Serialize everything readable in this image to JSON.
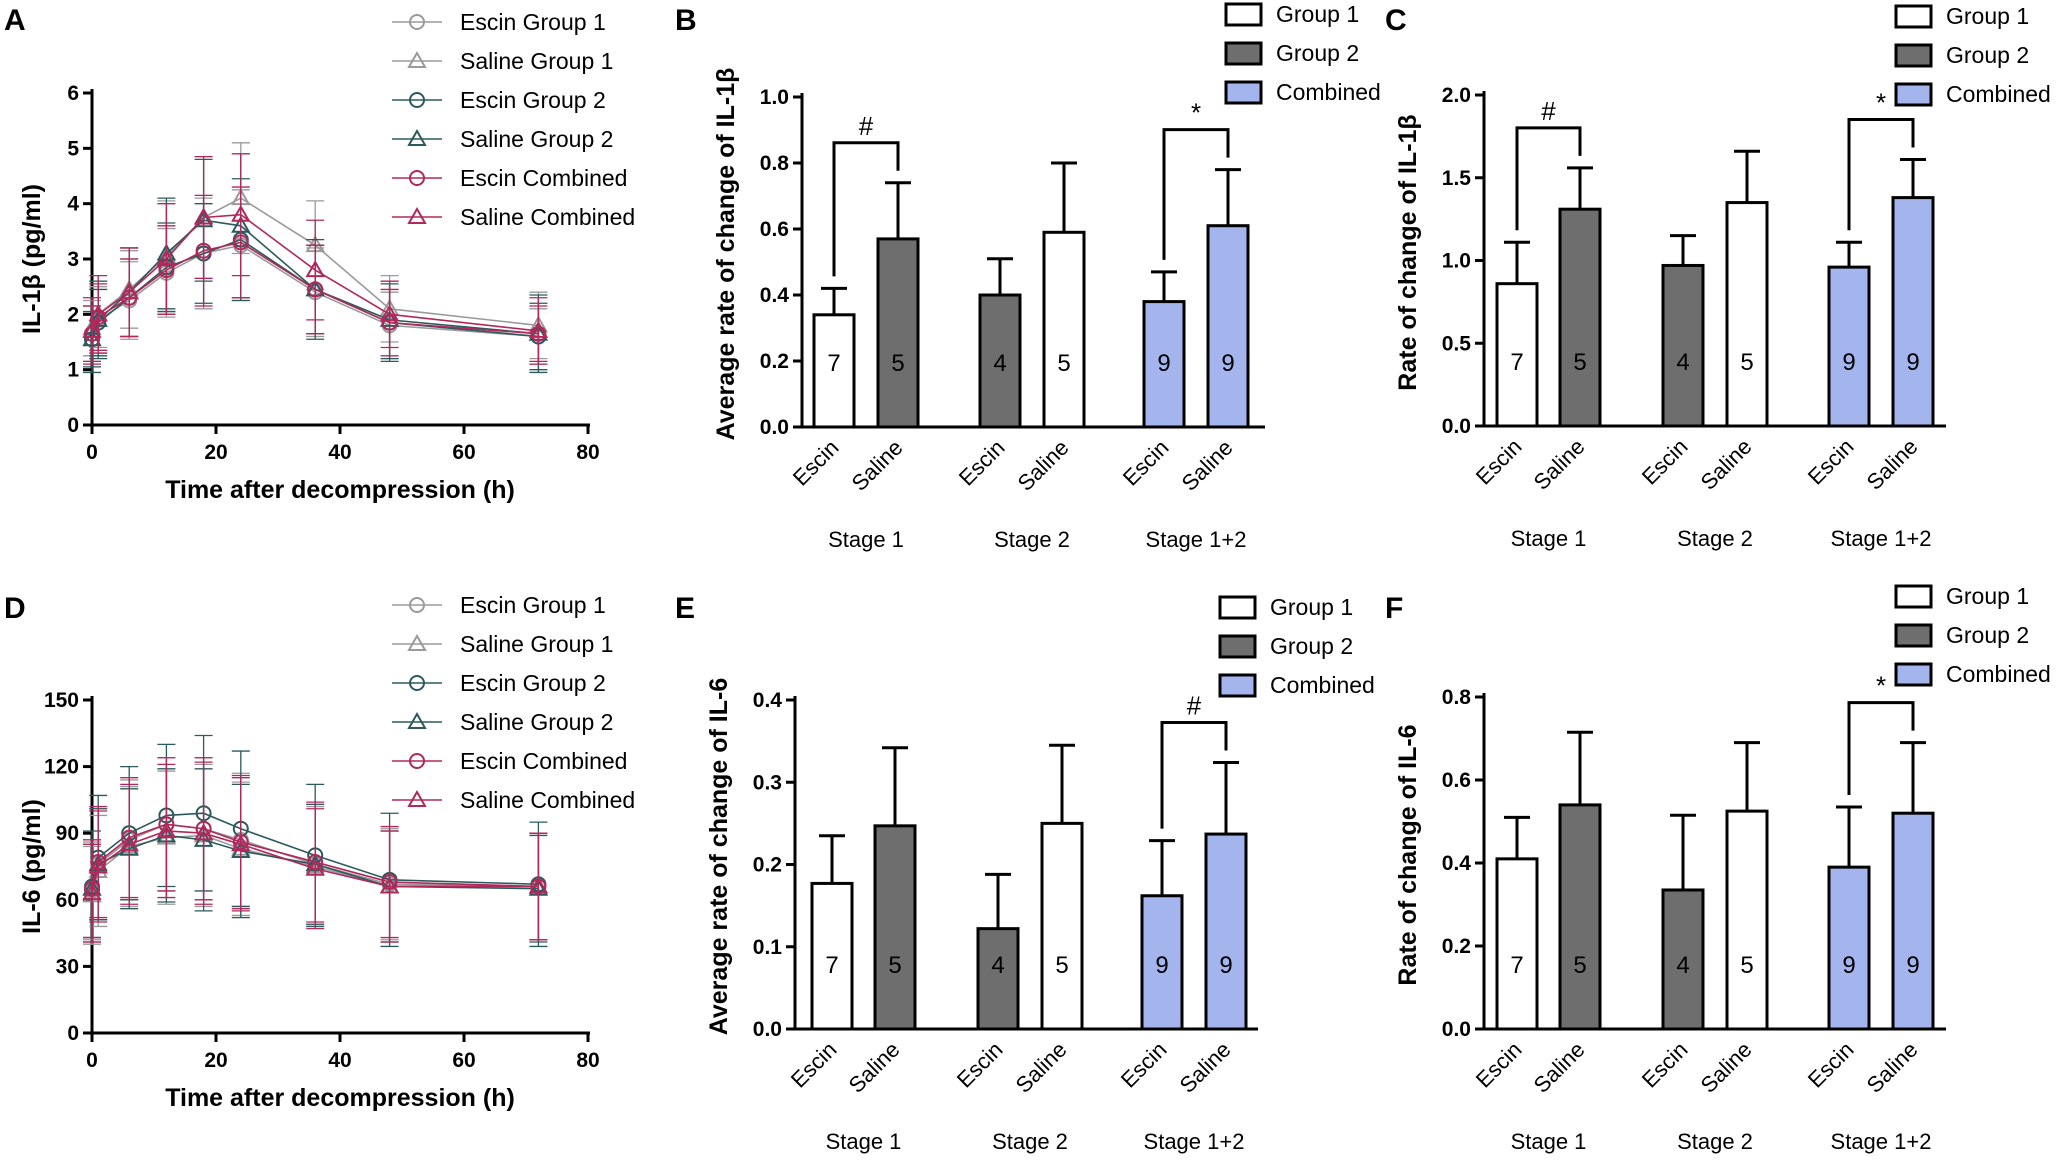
{
  "colors": {
    "group1_fill": "#ffffff",
    "group2_fill": "#6e6e6e",
    "combined_fill": "#a4b5ee",
    "escin_group1": "#9a9a9a",
    "saline_group1": "#9a9a9a",
    "escin_group2": "#2b5a5e",
    "saline_group2": "#2b5a5e",
    "escin_combined": "#b0285c",
    "saline_combined": "#b0285c"
  },
  "chart_data": [
    {
      "panel": "A",
      "type": "line",
      "xlabel": "Time after decompression (h)",
      "ylabel": "IL-1β  (pg/ml)",
      "xlim": [
        0,
        80
      ],
      "ylim": [
        0,
        6
      ],
      "xticks": [
        "0",
        "20",
        "40",
        "60",
        "80"
      ],
      "yticks": [
        "0",
        "1",
        "2",
        "3",
        "4",
        "5",
        "6"
      ],
      "x": [
        0,
        1,
        6,
        12,
        18,
        24,
        36,
        48,
        72
      ],
      "series": [
        {
          "name": "Escin Group 1",
          "marker": "circle",
          "color_key": "escin_group1",
          "values": [
            1.65,
            1.9,
            2.25,
            2.75,
            3.1,
            3.25,
            2.4,
            1.8,
            1.6
          ],
          "errors": [
            0.5,
            0.6,
            0.7,
            0.8,
            1.0,
            1.0,
            0.8,
            0.6,
            0.5
          ]
        },
        {
          "name": "Saline Group 1",
          "marker": "triangle",
          "color_key": "saline_group1",
          "values": [
            1.75,
            2.0,
            2.45,
            3.05,
            3.75,
            4.1,
            3.25,
            2.1,
            1.8
          ],
          "errors": [
            0.5,
            0.6,
            0.7,
            1.0,
            1.1,
            1.0,
            0.8,
            0.6,
            0.6
          ]
        },
        {
          "name": "Escin Group 2",
          "marker": "circle",
          "color_key": "escin_group2",
          "values": [
            1.55,
            1.85,
            2.3,
            2.85,
            3.1,
            3.35,
            2.45,
            1.85,
            1.6
          ],
          "errors": [
            0.5,
            0.6,
            0.7,
            0.8,
            0.9,
            1.1,
            0.8,
            0.7,
            0.6
          ]
        },
        {
          "name": "Saline Group 2",
          "marker": "triangle",
          "color_key": "saline_group2",
          "values": [
            1.55,
            1.9,
            2.4,
            3.1,
            3.7,
            3.6,
            2.45,
            1.9,
            1.65
          ],
          "errors": [
            0.6,
            0.7,
            0.8,
            1.0,
            1.1,
            1.3,
            0.9,
            0.7,
            0.7
          ]
        },
        {
          "name": "Escin Combined",
          "marker": "circle",
          "color_key": "escin_combined",
          "values": [
            1.65,
            1.95,
            2.3,
            2.8,
            3.15,
            3.3,
            2.45,
            1.85,
            1.65
          ],
          "errors": [
            0.5,
            0.6,
            0.7,
            0.8,
            1.0,
            1.0,
            0.8,
            0.6,
            0.5
          ]
        },
        {
          "name": "Saline Combined",
          "marker": "triangle",
          "color_key": "saline_combined",
          "values": [
            1.7,
            2.0,
            2.4,
            3.0,
            3.75,
            3.8,
            2.8,
            2.0,
            1.7
          ],
          "errors": [
            0.6,
            0.7,
            0.8,
            1.0,
            1.1,
            1.1,
            0.9,
            0.6,
            0.6
          ]
        }
      ]
    },
    {
      "panel": "B",
      "type": "bar",
      "ylabel": "Average rate of change of IL-1β",
      "ylim": [
        0,
        1.0
      ],
      "yticks": [
        "0.0",
        "0.2",
        "0.4",
        "0.6",
        "0.8",
        "1.0"
      ],
      "legend": [
        "Group 1",
        "Group 2",
        "Combined"
      ],
      "categories": [
        "Escin",
        "Saline",
        "Escin",
        "Saline",
        "Escin",
        "Saline"
      ],
      "stages": [
        "Stage 1",
        "Stage 2",
        "Stage 1+2"
      ],
      "values": [
        0.34,
        0.57,
        0.4,
        0.59,
        0.38,
        0.61
      ],
      "errors": [
        0.08,
        0.17,
        0.11,
        0.21,
        0.09,
        0.17
      ],
      "fills": [
        "group1_fill",
        "group2_fill",
        "group2_fill",
        "group1_fill",
        "combined_fill",
        "combined_fill"
      ],
      "n": [
        "7",
        "5",
        "4",
        "5",
        "9",
        "9"
      ],
      "significance": [
        {
          "bars": [
            0,
            1
          ],
          "label": "#"
        },
        {
          "bars": [
            4,
            5
          ],
          "label": "*"
        }
      ]
    },
    {
      "panel": "C",
      "type": "bar",
      "ylabel": "Rate of change of IL-1β",
      "ylim": [
        0,
        2.0
      ],
      "yticks": [
        "0.0",
        "0.5",
        "1.0",
        "1.5",
        "2.0"
      ],
      "legend": [
        "Group 1",
        "Group 2",
        "Combined"
      ],
      "categories": [
        "Escin",
        "Saline",
        "Escin",
        "Saline",
        "Escin",
        "Saline"
      ],
      "stages": [
        "Stage 1",
        "Stage 2",
        "Stage 1+2"
      ],
      "values": [
        0.86,
        1.31,
        0.97,
        1.35,
        0.96,
        1.38
      ],
      "errors": [
        0.25,
        0.25,
        0.18,
        0.31,
        0.15,
        0.23
      ],
      "fills": [
        "group1_fill",
        "group2_fill",
        "group2_fill",
        "group1_fill",
        "combined_fill",
        "combined_fill"
      ],
      "n": [
        "7",
        "5",
        "4",
        "5",
        "9",
        "9"
      ],
      "significance": [
        {
          "bars": [
            0,
            1
          ],
          "label": "#"
        },
        {
          "bars": [
            4,
            5
          ],
          "label": "*"
        }
      ]
    },
    {
      "panel": "D",
      "type": "line",
      "xlabel": "Time after decompression (h)",
      "ylabel": "IL-6 (pg/ml)",
      "xlim": [
        0,
        80
      ],
      "ylim": [
        0,
        150
      ],
      "xticks": [
        "0",
        "20",
        "40",
        "60",
        "80"
      ],
      "yticks": [
        "0",
        "30",
        "60",
        "90",
        "120",
        "150"
      ],
      "x": [
        0,
        1,
        6,
        12,
        18,
        24,
        36,
        48,
        72
      ],
      "series": [
        {
          "name": "Escin Group 1",
          "marker": "circle",
          "color_key": "escin_group1",
          "values": [
            64,
            76,
            87,
            94,
            92,
            87,
            76,
            67,
            66
          ],
          "errors": [
            22,
            25,
            27,
            30,
            32,
            30,
            27,
            25,
            24
          ]
        },
        {
          "name": "Saline Group 1",
          "marker": "triangle",
          "color_key": "saline_group1",
          "values": [
            62,
            73,
            84,
            88,
            89,
            83,
            75,
            66,
            66
          ],
          "errors": [
            22,
            25,
            27,
            30,
            32,
            30,
            27,
            25,
            24
          ]
        },
        {
          "name": "Escin Group 2",
          "marker": "circle",
          "color_key": "escin_group2",
          "values": [
            66,
            79,
            90,
            98,
            99,
            92,
            80,
            69,
            67
          ],
          "errors": [
            25,
            28,
            30,
            32,
            35,
            35,
            32,
            30,
            28
          ]
        },
        {
          "name": "Saline Group 2",
          "marker": "triangle",
          "color_key": "saline_group2",
          "values": [
            65,
            76,
            83,
            89,
            87,
            82,
            76,
            66,
            65
          ],
          "errors": [
            22,
            25,
            27,
            30,
            32,
            30,
            27,
            25,
            24
          ]
        },
        {
          "name": "Escin Combined",
          "marker": "circle",
          "color_key": "escin_combined",
          "values": [
            65,
            77,
            88,
            94,
            92,
            86,
            77,
            68,
            66
          ],
          "errors": [
            22,
            25,
            27,
            30,
            32,
            30,
            27,
            25,
            24
          ]
        },
        {
          "name": "Saline Combined",
          "marker": "triangle",
          "color_key": "saline_combined",
          "values": [
            63,
            75,
            85,
            91,
            90,
            85,
            74,
            66,
            66
          ],
          "errors": [
            22,
            25,
            27,
            30,
            32,
            30,
            27,
            25,
            24
          ]
        }
      ]
    },
    {
      "panel": "E",
      "type": "bar",
      "ylabel": "Average rate of change of IL-6",
      "ylim": [
        0,
        0.4
      ],
      "yticks": [
        "0.0",
        "0.1",
        "0.2",
        "0.3",
        "0.4"
      ],
      "legend": [
        "Group 1",
        "Group 2",
        "Combined"
      ],
      "categories": [
        "Escin",
        "Saline",
        "Escin",
        "Saline",
        "Escin",
        "Saline"
      ],
      "stages": [
        "Stage 1",
        "Stage 2",
        "Stage 1+2"
      ],
      "values": [
        0.177,
        0.247,
        0.122,
        0.25,
        0.162,
        0.237
      ],
      "errors": [
        0.058,
        0.095,
        0.066,
        0.095,
        0.067,
        0.087
      ],
      "fills": [
        "group1_fill",
        "group2_fill",
        "group2_fill",
        "group1_fill",
        "combined_fill",
        "combined_fill"
      ],
      "n": [
        "7",
        "5",
        "4",
        "5",
        "9",
        "9"
      ],
      "significance": [
        {
          "bars": [
            4,
            5
          ],
          "label": "#"
        }
      ]
    },
    {
      "panel": "F",
      "type": "bar",
      "ylabel": "Rate of change of IL-6",
      "ylim": [
        0,
        0.8
      ],
      "yticks": [
        "0.0",
        "0.2",
        "0.4",
        "0.6",
        "0.8"
      ],
      "legend": [
        "Group 1",
        "Group 2",
        "Combined"
      ],
      "categories": [
        "Escin",
        "Saline",
        "Escin",
        "Saline",
        "Escin",
        "Saline"
      ],
      "stages": [
        "Stage 1",
        "Stage 2",
        "Stage 1+2"
      ],
      "values": [
        0.41,
        0.54,
        0.335,
        0.525,
        0.39,
        0.52
      ],
      "errors": [
        0.1,
        0.175,
        0.18,
        0.165,
        0.145,
        0.17
      ],
      "fills": [
        "group1_fill",
        "group2_fill",
        "group2_fill",
        "group1_fill",
        "combined_fill",
        "combined_fill"
      ],
      "n": [
        "7",
        "5",
        "4",
        "5",
        "9",
        "9"
      ],
      "significance": [
        {
          "bars": [
            4,
            5
          ],
          "label": "*"
        }
      ]
    }
  ]
}
